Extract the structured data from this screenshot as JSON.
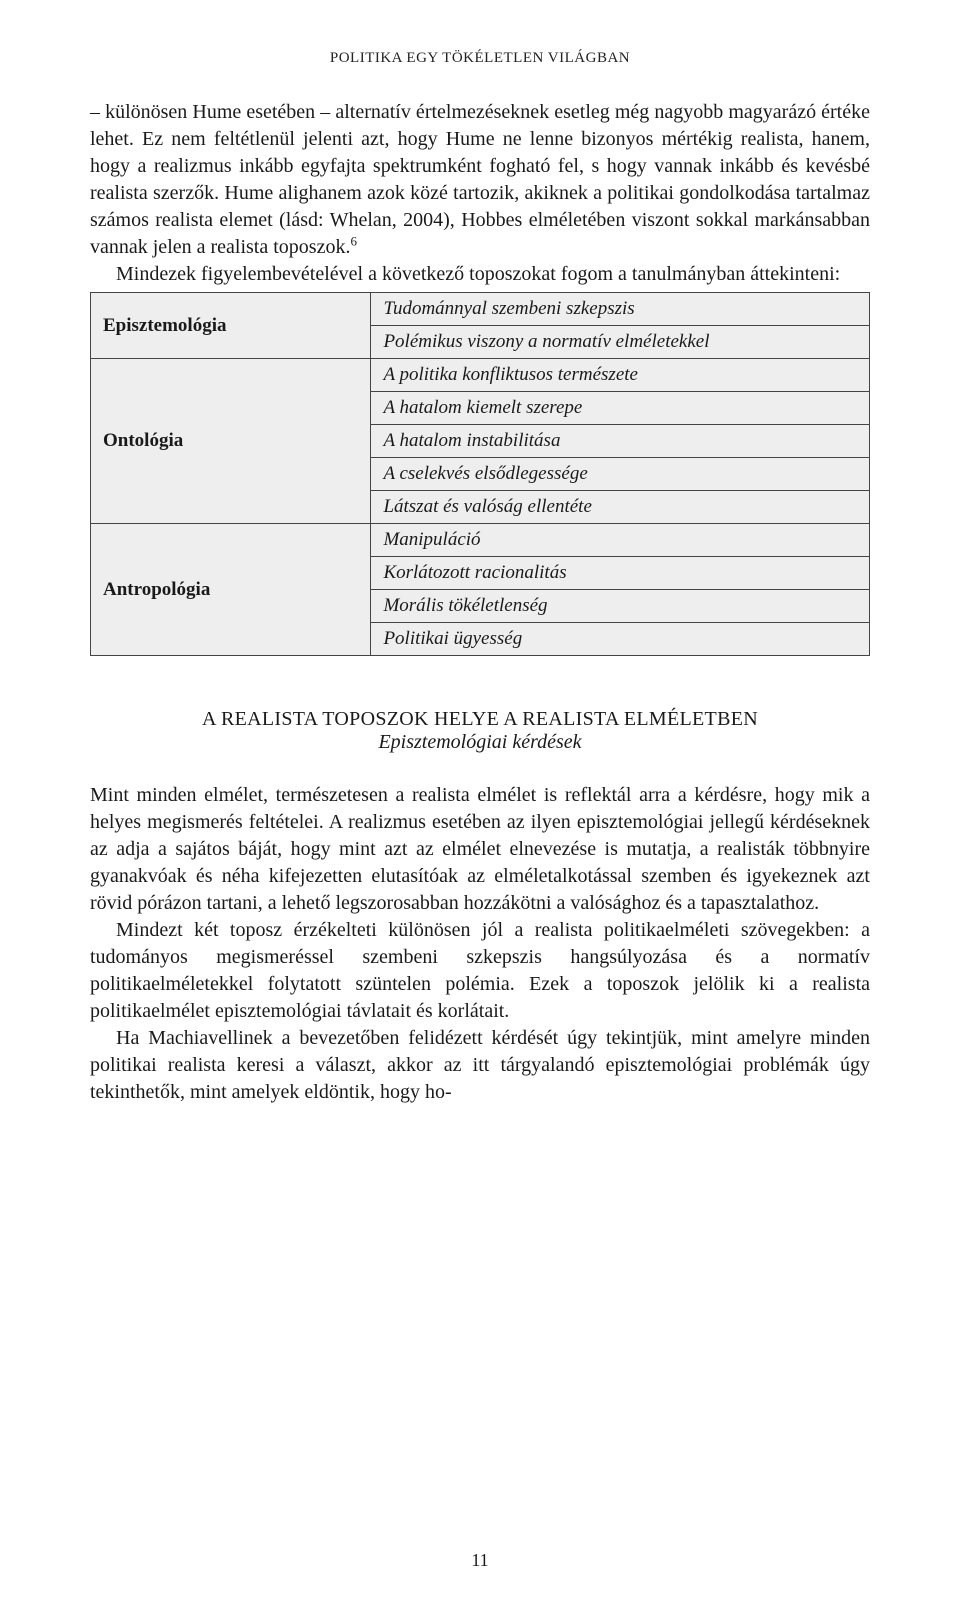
{
  "running_header": "POLITIKA EGY TÖKÉLETLEN VILÁGBAN",
  "para1": "– különösen Hume esetében – alternatív értelmezéseknek esetleg még nagyobb magyarázó értéke lehet. Ez nem feltétlenül jelenti azt, hogy Hume ne lenne bizonyos mértékig realista, hanem, hogy a realizmus inkább egyfajta spektrumként fogható fel, s hogy vannak inkább és kevésbé realista szerzők. Hume alighanem azok közé tartozik, akiknek a politikai gondolkodása tartalmaz számos realista elemet (lásd: Whelan, 2004), Hobbes elméletében viszont sokkal markánsabban vannak jelen a realista toposzok.",
  "footnote_marker": "6",
  "para2_pre": "Mindezek figyelembevételével a következő toposzokat fogom a tanulmányban áttekinteni:",
  "table": {
    "categories": [
      {
        "name": "Episztemológia",
        "items": [
          "Tudománnyal szembeni szkepszis",
          "Polémikus viszony a normatív elméletekkel"
        ]
      },
      {
        "name": "Ontológia",
        "items": [
          "A politika konfliktusos természete",
          "A hatalom kiemelt szerepe",
          "A hatalom instabilitása",
          "A cselekvés elsődlegessége",
          "Látszat és valóság ellentéte"
        ]
      },
      {
        "name": "Antropológia",
        "items": [
          "Manipuláció",
          "Korlátozott racionalitás",
          "Morális tökéletlenség",
          "Politikai ügyesség"
        ]
      }
    ],
    "cell_bg": "#eeeeee",
    "border_color": "#444444"
  },
  "section": {
    "heading": "A REALISTA TOPOSZOK HELYE A REALISTA ELMÉLETBEN",
    "subheading": "Episztemológiai kérdések"
  },
  "para3": "Mint minden elmélet, természetesen a realista elmélet is reflektál arra a kérdésre, hogy mik a helyes megismerés feltételei. A realizmus esetében az ilyen episztemológiai jellegű kérdéseknek az adja a sajátos báját, hogy mint azt az elmélet elnevezése is mutatja, a realisták többnyire gyanakvóak és néha kifejezetten elutasítóak az elméletalkotással szemben és igyekeznek azt rövid pórázon tartani, a lehető legszorosabban hozzákötni a valósághoz és a tapasztalathoz.",
  "para4": "Mindezt két toposz érzékelteti különösen jól a realista politikaelméleti szövegekben: a tudományos megismeréssel szembeni szkepszis hangsúlyozása és a normatív politikaelméletekkel folytatott szüntelen polémia. Ezek a toposzok jelölik ki a realista politikaelmélet episztemológiai távlatait és korlátait.",
  "para5": "Ha Machiavellinek a bevezetőben felidézett kérdését úgy tekintjük, mint amelyre minden politikai realista keresi a választ, akkor az itt tárgyalandó episztemológiai problémák úgy tekinthetők, mint amelyek eldöntik, hogy ho-",
  "page_number": "11"
}
